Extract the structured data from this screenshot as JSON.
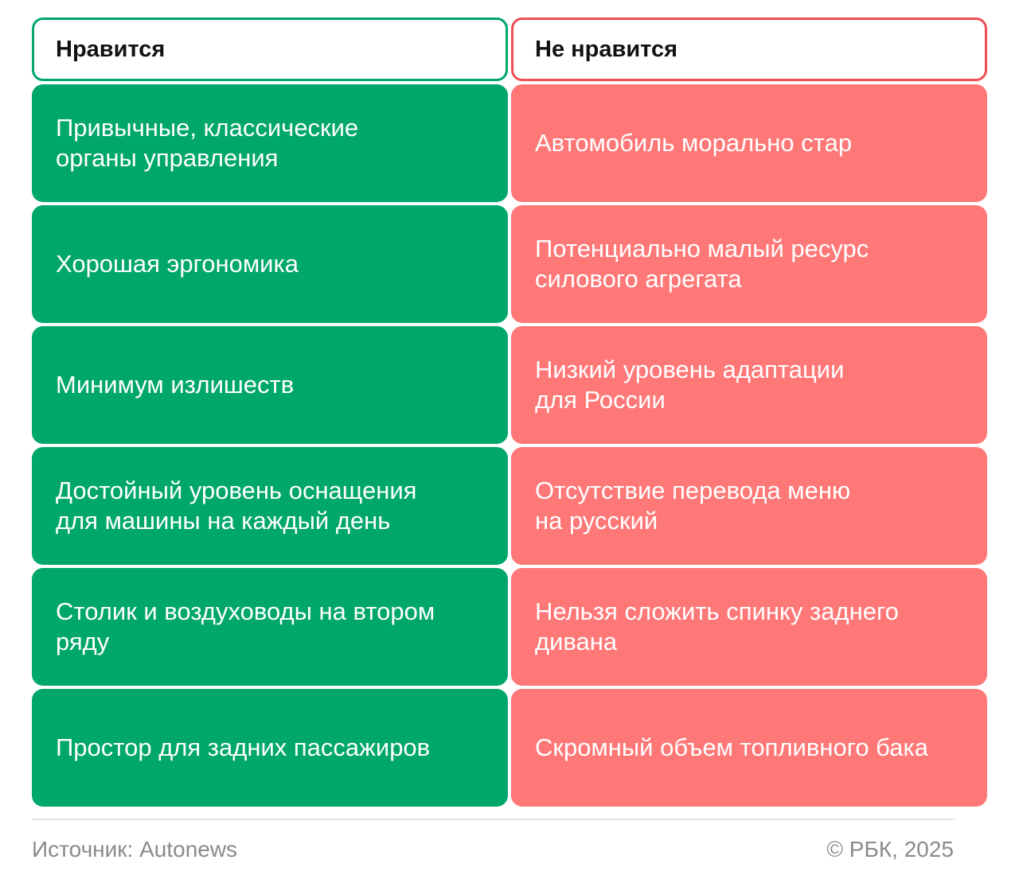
{
  "headers": {
    "like": "Нравится",
    "dislike": "Не нравится"
  },
  "rows": [
    {
      "like": "Привычные, классические\nорганы управления",
      "dislike": "Автомобиль морально стар"
    },
    {
      "like": "Хорошая эргономика",
      "dislike": "Потенциально малый ресурс\nсилового агрегата"
    },
    {
      "like": "Минимум излишеств",
      "dislike": "Низкий уровень адаптации\nдля России"
    },
    {
      "like": "Достойный уровень оснащения\nдля машины на каждый день",
      "dislike": "Отсутствие перевода меню\nна русский"
    },
    {
      "like": "Столик и воздуховоды на втором\nряду",
      "dislike": "Нельзя сложить спинку заднего\nдивана"
    },
    {
      "like": "Простор для задних пассажиров",
      "dislike": "Скромный объем топливного бака"
    }
  ],
  "footer": {
    "source": "Источник: Autonews",
    "copyright": "© РБК, 2025"
  },
  "colors": {
    "like": "#00a76a",
    "dislike": "#ff7878",
    "like_border": "#00a76a",
    "dislike_border": "#ef4e54"
  }
}
